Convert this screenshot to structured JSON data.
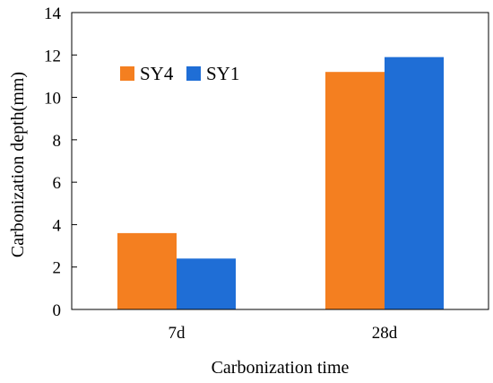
{
  "chart_data": {
    "type": "bar",
    "title": "",
    "xlabel": "Carbonization time",
    "ylabel": "Carbonization depth(mm)",
    "categories": [
      "7d",
      "28d"
    ],
    "series": [
      {
        "name": "SY4",
        "color": "#F47F20",
        "values": [
          3.6,
          11.2
        ]
      },
      {
        "name": "SY1",
        "color": "#1F6ED6",
        "values": [
          2.4,
          11.9
        ]
      }
    ],
    "ylim": [
      0,
      14
    ],
    "yticks": [
      "0",
      "2",
      "4",
      "6",
      "8",
      "10",
      "12",
      "14"
    ],
    "grid": false,
    "legend_position": "top-left"
  }
}
